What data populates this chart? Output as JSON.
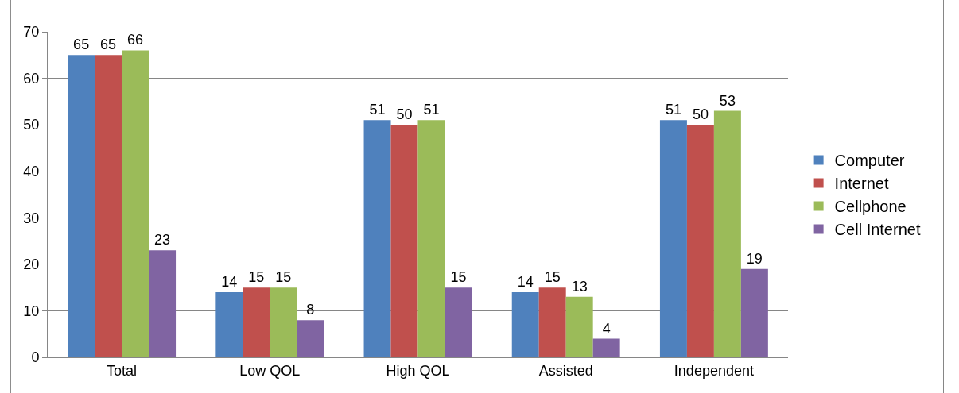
{
  "chart_data": {
    "type": "bar",
    "categories": [
      "Total",
      "Low QOL",
      "High QOL",
      "Assisted",
      "Independent"
    ],
    "series": [
      {
        "name": "Computer",
        "color": "#4f81bd",
        "values": [
          65,
          14,
          51,
          14,
          51
        ]
      },
      {
        "name": "Internet",
        "color": "#c0504d",
        "values": [
          65,
          15,
          50,
          15,
          50
        ]
      },
      {
        "name": "Cellphone",
        "color": "#9bbb59",
        "values": [
          66,
          15,
          51,
          13,
          53
        ]
      },
      {
        "name": "Cell Internet",
        "color": "#8064a2",
        "values": [
          23,
          8,
          15,
          4,
          19
        ]
      }
    ],
    "ylim": [
      0,
      70
    ],
    "yticks": [
      0,
      10,
      20,
      30,
      40,
      50,
      60,
      70
    ],
    "grid": "y",
    "legend": "right",
    "data_labels": true
  }
}
